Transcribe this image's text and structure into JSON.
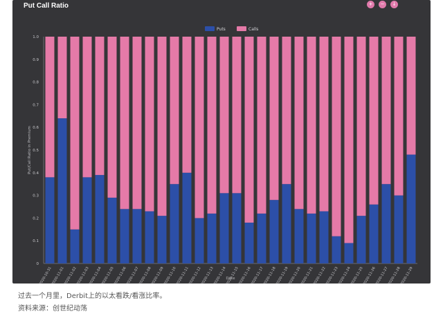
{
  "app": {
    "title": "Put Call Ratio",
    "toolbar": [
      {
        "name": "zoom-in-icon",
        "glyph": "+"
      },
      {
        "name": "zoom-out-icon",
        "glyph": "−"
      },
      {
        "name": "download-icon",
        "glyph": "↓"
      }
    ]
  },
  "chart_data": {
    "type": "bar",
    "stacked": true,
    "title": "Put Call Ratio",
    "xlabel": "Date",
    "ylabel": "Put/Call Ratio in Premium",
    "ylim": [
      0,
      1
    ],
    "yticks": [
      "0",
      "0.1",
      "0.2",
      "0.3",
      "0.4",
      "0.5",
      "0.6",
      "0.7",
      "0.8",
      "0.9",
      "1.0"
    ],
    "legend_position": "top-center",
    "grid": false,
    "categories": [
      "2020-10-31",
      "2020-11-01",
      "2020-11-02",
      "2020-11-03",
      "2020-11-04",
      "2020-11-05",
      "2020-11-06",
      "2020-11-07",
      "2020-11-08",
      "2020-11-09",
      "2020-11-10",
      "2020-11-11",
      "2020-11-12",
      "2020-11-13",
      "2020-11-14",
      "2020-11-15",
      "2020-11-16",
      "2020-11-17",
      "2020-11-18",
      "2020-11-19",
      "2020-11-20",
      "2020-11-21",
      "2020-11-22",
      "2020-11-23",
      "2020-11-24",
      "2020-11-25",
      "2020-11-26",
      "2020-11-27",
      "2020-11-28",
      "2020-11-29"
    ],
    "series": [
      {
        "name": "Puts",
        "color": "#2c4fa8",
        "values": [
          0.38,
          0.64,
          0.15,
          0.38,
          0.39,
          0.29,
          0.24,
          0.24,
          0.23,
          0.21,
          0.35,
          0.4,
          0.2,
          0.22,
          0.31,
          0.31,
          0.18,
          0.22,
          0.28,
          0.35,
          0.24,
          0.22,
          0.23,
          0.12,
          0.09,
          0.21,
          0.26,
          0.35,
          0.3,
          0.48
        ]
      },
      {
        "name": "Calls",
        "color": "#e57aa8",
        "values": [
          0.62,
          0.36,
          0.85,
          0.62,
          0.61,
          0.71,
          0.76,
          0.76,
          0.77,
          0.79,
          0.65,
          0.6,
          0.8,
          0.78,
          0.69,
          0.69,
          0.82,
          0.78,
          0.72,
          0.65,
          0.76,
          0.78,
          0.77,
          0.88,
          0.91,
          0.79,
          0.74,
          0.65,
          0.7,
          0.52
        ]
      }
    ]
  },
  "caption": {
    "line1": "过去一个月里，Derbit上的以太看跌/看涨比率。",
    "line2": "资料来源：创世纪动荡"
  }
}
